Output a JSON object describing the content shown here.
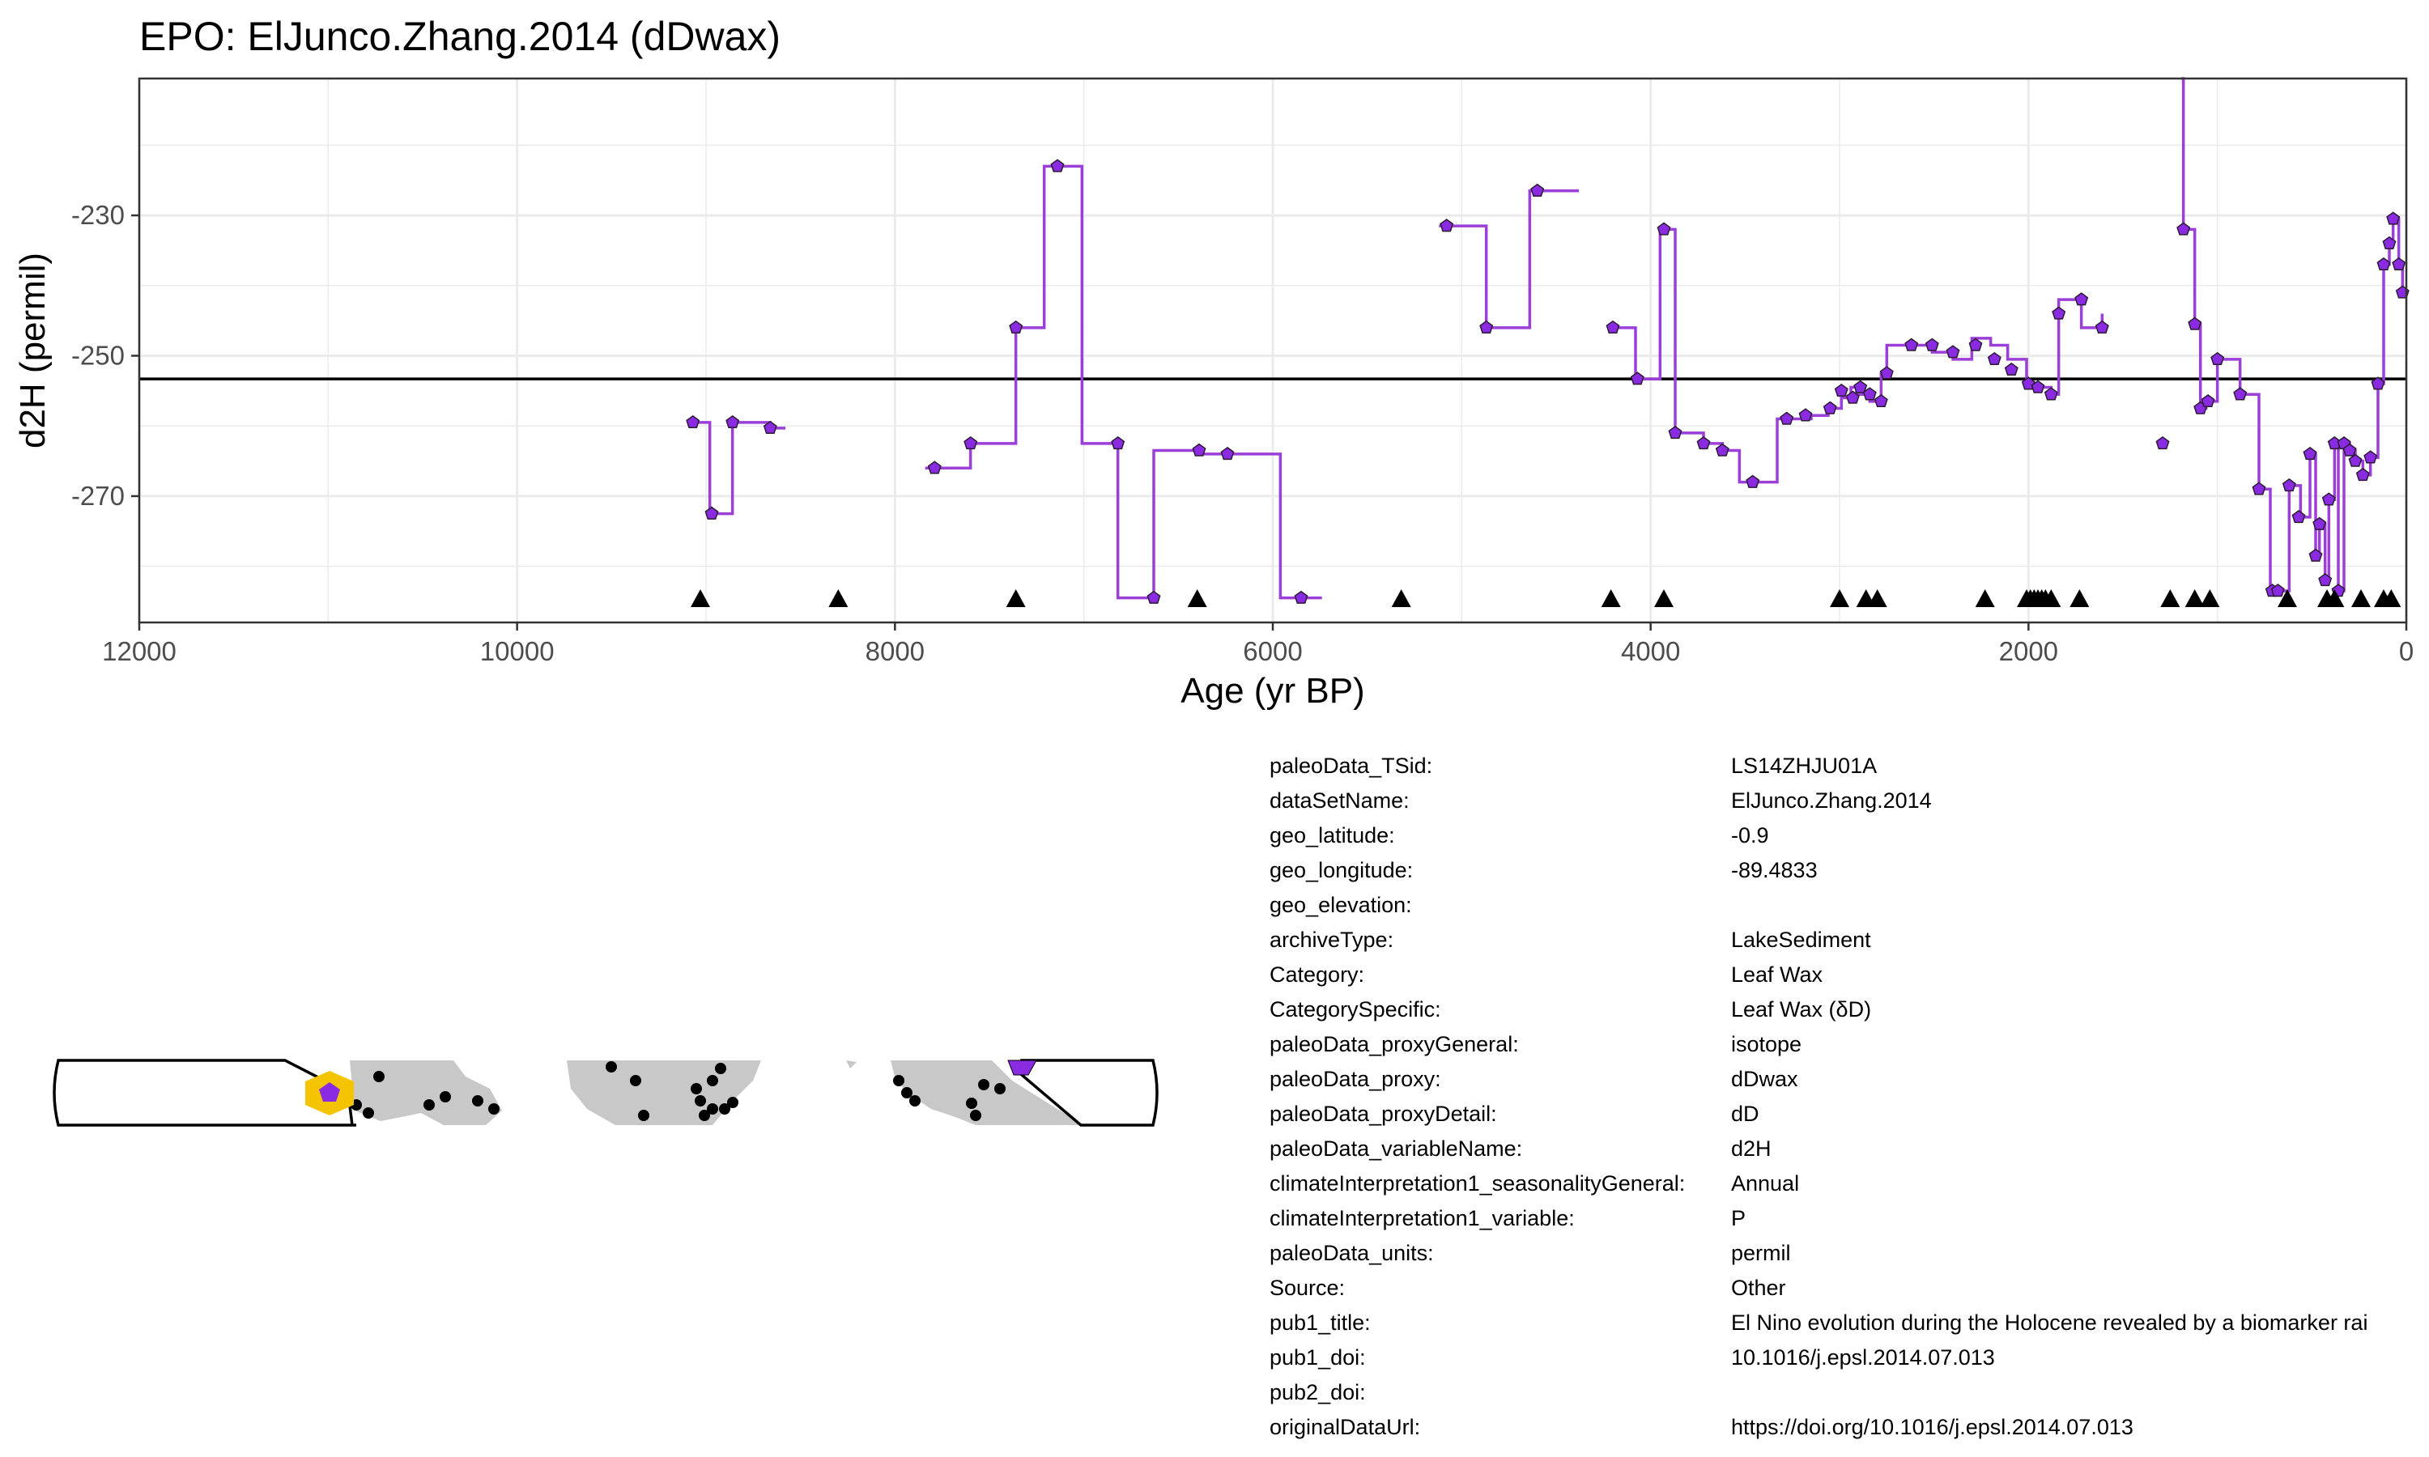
{
  "chart_data": {
    "type": "line",
    "title": "EPO: ElJunco.Zhang.2014 (dDwax)",
    "xlabel": "Age (yr BP)",
    "ylabel": "d2H (permil)",
    "xlim": [
      12000,
      0
    ],
    "ylim": [
      -210.5,
      -288
    ],
    "x_ticks": [
      12000,
      10000,
      8000,
      6000,
      4000,
      2000,
      0
    ],
    "y_ticks": [
      -270,
      -250,
      -230
    ],
    "grid": true,
    "mean_line": -253.3,
    "series": [
      {
        "style": "step",
        "segments": [
          {
            "x": [
              9080,
              8980,
              8860,
              8660,
              8580
            ],
            "y": [
              -259.5,
              -272.5,
              -259.5,
              -260.3,
              -260.3
            ]
          },
          {
            "x": [
              7840,
              7790,
              7600,
              7360,
              7210,
              7010,
              6820,
              6630,
              6390,
              6240,
              5960,
              5740
            ],
            "y": [
              -266.0,
              -266.0,
              -262.5,
              -246.0,
              -223.0,
              -262.5,
              -284.5,
              -263.5,
              -264.0,
              -264.0,
              -284.5,
              -284.5
            ]
          },
          {
            "x": [
              5120,
              5080,
              4870,
              4820,
              4640,
              4570,
              4380
            ],
            "y": [
              -231.5,
              -231.5,
              -246.0,
              -246.0,
              -226.5,
              -226.5,
              -226.5
            ]
          },
          {
            "x": [
              4230,
              4200,
              4080,
              4050,
              3950,
              3910,
              3870,
              3720,
              3620,
              3530,
              3330,
              3150,
              3060,
              2990,
              2940,
              2910,
              2840,
              2780,
              2750,
              2620,
              2510,
              2400,
              2300,
              2200,
              2110,
              2010,
              1960,
              1880,
              1840,
              1720,
              1700,
              1610
            ],
            "y": [
              -246.0,
              -246.0,
              -253.3,
              -253.3,
              -232.0,
              -232.0,
              -261.0,
              -262.5,
              -263.5,
              -268.0,
              -259.0,
              -258.5,
              -257.5,
              -256.0,
              -254.5,
              -255.5,
              -256.5,
              -252.5,
              -248.5,
              -248.5,
              -249.5,
              -250.5,
              -247.5,
              -248.5,
              -250.5,
              -254.5,
              -254.5,
              -255.5,
              -242.0,
              -246.0,
              -246.0,
              -244.0
            ]
          },
          {
            "x": [
              1190,
              1180,
              1120,
              1090,
              1060,
              1000,
              880,
              780,
              720,
              680,
              620,
              560,
              510,
              480,
              460,
              430,
              410,
              380,
              360,
              330,
              300,
              270,
              230,
              190,
              150,
              120,
              90,
              70,
              40,
              20,
              0
            ],
            "y": [
              -210.5,
              -232.0,
              -245.5,
              -257.5,
              -256.5,
              -250.5,
              -255.5,
              -269.0,
              -283.5,
              -283.5,
              -268.5,
              -273.0,
              -264.0,
              -278.5,
              -274.0,
              -282.0,
              -270.5,
              -262.5,
              -283.5,
              -262.5,
              -263.5,
              -265.0,
              -267.0,
              -264.5,
              -254.0,
              -237.0,
              -234.0,
              -230.5,
              -237.0,
              -241.0,
              -241.0
            ]
          }
        ]
      },
      {
        "style": "points",
        "x": [
          9070,
          8970,
          8860,
          8660,
          7790,
          7600,
          7360,
          7140,
          6820,
          6630,
          6390,
          6240,
          5850,
          5080,
          4870,
          4600,
          4200,
          4070,
          3930,
          3870,
          3720,
          3620,
          3460,
          3280,
          3180,
          3050,
          2990,
          2930,
          2890,
          2840,
          2780,
          2750,
          2620,
          2510,
          2400,
          2280,
          2180,
          2090,
          2000,
          1950,
          1880,
          1840,
          1720,
          1610,
          1290,
          1180,
          1120,
          1090,
          1050,
          1000,
          880,
          780,
          710,
          680,
          620,
          570,
          510,
          480,
          460,
          430,
          410,
          380,
          360,
          330,
          300,
          270,
          230,
          190,
          150,
          120,
          90,
          70,
          40,
          20
        ],
        "y": [
          -259.5,
          -272.5,
          -259.5,
          -260.3,
          -266.0,
          -262.5,
          -246.0,
          -223.0,
          -262.5,
          -284.5,
          -263.5,
          -264.0,
          -284.5,
          -231.5,
          -246.0,
          -226.5,
          -246.0,
          -253.3,
          -232.0,
          -261.0,
          -262.5,
          -263.5,
          -268.0,
          -259.0,
          -258.5,
          -257.5,
          -255.0,
          -256.0,
          -254.5,
          -255.5,
          -256.5,
          -252.5,
          -248.5,
          -248.5,
          -249.5,
          -248.5,
          -250.5,
          -252.0,
          -254.0,
          -254.5,
          -255.5,
          -244.0,
          -242.0,
          -246.0,
          -262.5,
          -232.0,
          -245.5,
          -257.5,
          -256.5,
          -250.5,
          -255.5,
          -269.0,
          -283.5,
          -283.5,
          -268.5,
          -273.0,
          -264.0,
          -278.5,
          -274.0,
          -282.0,
          -270.5,
          -262.5,
          -283.5,
          -262.5,
          -263.5,
          -265.0,
          -267.0,
          -264.5,
          -254.0,
          -237.0,
          -234.0,
          -230.5,
          -237.0,
          -241.0
        ]
      }
    ],
    "age_control_points": [
      9030,
      8300,
      7360,
      6400,
      5320,
      4210,
      3930,
      3000,
      2860,
      2800,
      2230,
      2010,
      1990,
      1970,
      1950,
      1930,
      1910,
      1880,
      1730,
      1250,
      1120,
      1040,
      630,
      420,
      380,
      240,
      120,
      80
    ]
  },
  "colors": {
    "line": "#9b3fd8",
    "point_fill": "#8a2be2",
    "point_stroke": "#2b1b33",
    "mean_line": "#000000",
    "grid": "#ebebeb",
    "map_land": "#c8c8c8",
    "map_site": "#8a2be2",
    "map_highlight": "#f5c400"
  },
  "map": {
    "type": "site-map",
    "highlight_site": {
      "lat": -0.9,
      "lon": -89.4833
    }
  },
  "metadata": [
    {
      "key": "paleoData_TSid:",
      "value": "LS14ZHJU01A"
    },
    {
      "key": "dataSetName:",
      "value": "ElJunco.Zhang.2014"
    },
    {
      "key": "geo_latitude:",
      "value": "-0.9"
    },
    {
      "key": "geo_longitude:",
      "value": "-89.4833"
    },
    {
      "key": "geo_elevation:",
      "value": ""
    },
    {
      "key": "archiveType:",
      "value": "LakeSediment"
    },
    {
      "key": "Category:",
      "value": "Leaf Wax"
    },
    {
      "key": "CategorySpecific:",
      "value": "Leaf Wax (δD)"
    },
    {
      "key": "paleoData_proxyGeneral:",
      "value": "isotope"
    },
    {
      "key": "paleoData_proxy:",
      "value": "dDwax"
    },
    {
      "key": "paleoData_proxyDetail:",
      "value": "dD"
    },
    {
      "key": "paleoData_variableName:",
      "value": "d2H"
    },
    {
      "key": "climateInterpretation1_seasonalityGeneral:",
      "value": "Annual"
    },
    {
      "key": "climateInterpretation1_variable:",
      "value": "P"
    },
    {
      "key": "paleoData_units:",
      "value": "permil"
    },
    {
      "key": "Source:",
      "value": "Other"
    },
    {
      "key": "pub1_title:",
      "value": "El Nino evolution during the Holocene revealed by a biomarker rai"
    },
    {
      "key": "pub1_doi:",
      "value": "10.1016/j.epsl.2014.07.013"
    },
    {
      "key": "pub2_doi:",
      "value": ""
    },
    {
      "key": "originalDataUrl:",
      "value": "https://doi.org/10.1016/j.epsl.2014.07.013"
    }
  ]
}
